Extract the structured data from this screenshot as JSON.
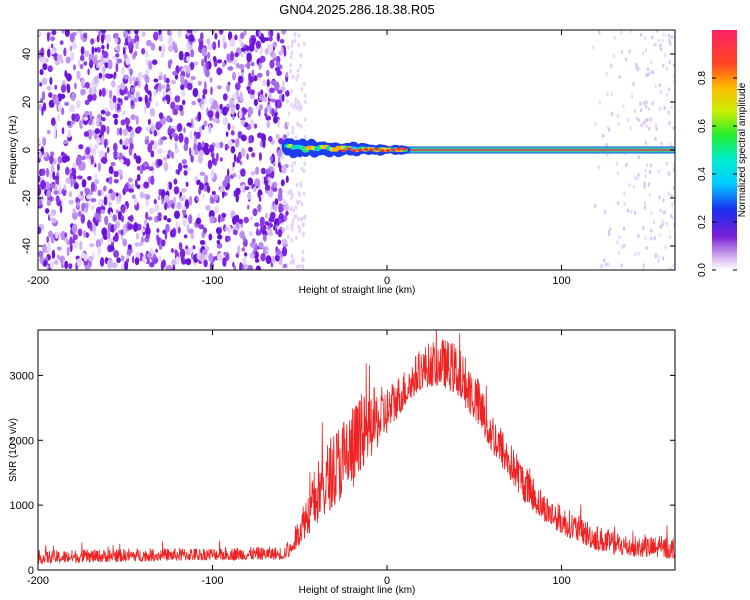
{
  "title": "GN04.2025.286.18.38.R05",
  "chart_data": [
    {
      "type": "heatmap",
      "xlabel": "Height of straight line (km)",
      "ylabel": "Frequency (Hz)",
      "xlim": [
        -200,
        165
      ],
      "ylim": [
        -50,
        50
      ],
      "xticks": [
        -200,
        -100,
        0,
        100
      ],
      "yticks": [
        -40,
        -20,
        0,
        20,
        40
      ],
      "noise_region_x": [
        -200,
        -57
      ],
      "signal_band": {
        "x_start": -57,
        "x_end": 165,
        "frequency": 0
      },
      "colorbar": {
        "label": "Normalized spectral amplitude",
        "range": [
          0.0,
          1.0
        ],
        "ticks": [
          0.0,
          0.2,
          0.4,
          0.6,
          0.8
        ]
      }
    },
    {
      "type": "line",
      "xlabel": "Height of straight line (km)",
      "ylabel": "SNR (10 * v/v)",
      "xlim": [
        -200,
        165
      ],
      "ylim": [
        0,
        3700
      ],
      "xticks": [
        -200,
        -100,
        0,
        100
      ],
      "yticks": [
        0,
        1000,
        2000,
        3000
      ],
      "series": [
        {
          "name": "SNR",
          "color": "#ee2222",
          "envelope": {
            "x": [
              -200,
              -150,
              -100,
              -60,
              -55,
              -50,
              -40,
              -30,
              -20,
              -10,
              0,
              10,
              20,
              30,
              40,
              50,
              60,
              70,
              80,
              90,
              100,
              110,
              120,
              130,
              140,
              150,
              165
            ],
            "low": [
              100,
              130,
              150,
              160,
              200,
              400,
              700,
              1000,
              1200,
              1700,
              2100,
              2500,
              2800,
              2850,
              2700,
              2300,
              1800,
              1400,
              1000,
              750,
              550,
              420,
              300,
              230,
              200,
              190,
              170
            ],
            "high": [
              300,
              330,
              350,
              360,
              450,
              900,
              1700,
              2200,
              2600,
              2800,
              2850,
              3100,
              3450,
              3600,
              3500,
              3100,
              2500,
              2000,
              1600,
              1200,
              1000,
              850,
              700,
              600,
              550,
              520,
              520
            ]
          }
        }
      ]
    }
  ]
}
